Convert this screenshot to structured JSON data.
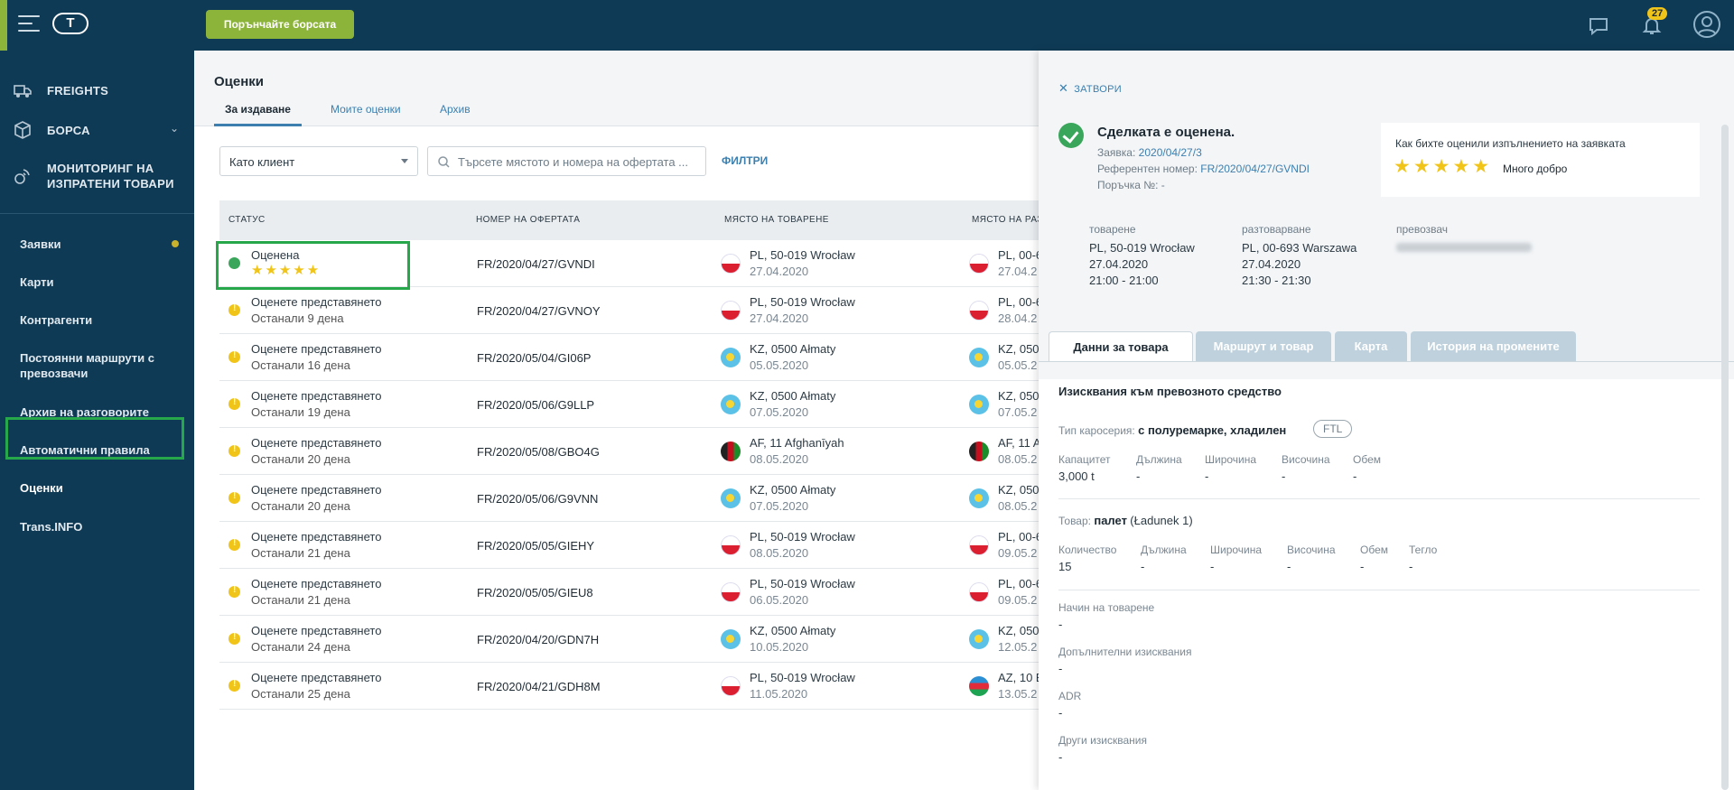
{
  "topbar": {
    "try_button": "Порънчайте борсата",
    "logo": "T",
    "notification_count": "27"
  },
  "sidebar": {
    "main_items": [
      {
        "label": "FREIGHTS"
      },
      {
        "label": "БОРСА"
      },
      {
        "label": "МОНИТОРИНГ НА ИЗПРАТЕНИ ТОВАРИ"
      }
    ],
    "items": [
      {
        "label": "Заявки"
      },
      {
        "label": "Карти"
      },
      {
        "label": "Контрагенти"
      },
      {
        "label": "Постоянни маршрути с превозвачи"
      },
      {
        "label": "Архив на разговорите"
      },
      {
        "label": "Автоматични правила"
      },
      {
        "label": "Оценки"
      },
      {
        "label": "Trans.INFO"
      }
    ]
  },
  "main": {
    "title": "Оценки",
    "tabs": [
      "За издаване",
      "Моите оценки",
      "Архив"
    ],
    "select_value": "Като клиент",
    "search_placeholder": "Търсете мястото и номера на офертата ...",
    "filters_label": "ФИЛТРИ",
    "columns": [
      "СТАТУС",
      "НОМЕР НА ОФЕРТАТА",
      "МЯСТО НА ТОВАРЕНЕ",
      "МЯСТО НА РАЗ"
    ],
    "rows": [
      {
        "status": "Оценена",
        "stars": "★★★★★",
        "number": "FR/2020/04/27/GVNDI",
        "load_flag": "pl",
        "load": "PL, 50-019 Wrocław",
        "load_date": "27.04.2020",
        "unload_flag": "pl",
        "unload": "PL, 00-6",
        "unload_date": "27.04.2"
      },
      {
        "status": "Оценете представянето",
        "sub": "Останали 9 дена",
        "number": "FR/2020/04/27/GVNOY",
        "load_flag": "pl",
        "load": "PL, 50-019 Wrocław",
        "load_date": "27.04.2020",
        "unload_flag": "pl",
        "unload": "PL, 00-6",
        "unload_date": "28.04.2"
      },
      {
        "status": "Оценете представянето",
        "sub": "Останали 16 дена",
        "number": "FR/2020/05/04/GI06P",
        "load_flag": "kz",
        "load": "KZ, 0500 Ałmaty",
        "load_date": "05.05.2020",
        "unload_flag": "kz",
        "unload": "KZ, 050",
        "unload_date": "05.05.2"
      },
      {
        "status": "Оценете представянето",
        "sub": "Останали 19 дена",
        "number": "FR/2020/05/06/G9LLP",
        "load_flag": "kz",
        "load": "KZ, 0500 Ałmaty",
        "load_date": "07.05.2020",
        "unload_flag": "kz",
        "unload": "KZ, 050",
        "unload_date": "07.05.2"
      },
      {
        "status": "Оценете представянето",
        "sub": "Останали 20 дена",
        "number": "FR/2020/05/08/GBO4G",
        "load_flag": "af",
        "load": "AF, 11 Afghanīyah",
        "load_date": "08.05.2020",
        "unload_flag": "af",
        "unload": "AF, 11 A",
        "unload_date": "08.05.2"
      },
      {
        "status": "Оценете представянето",
        "sub": "Останали 20 дена",
        "number": "FR/2020/05/06/G9VNN",
        "load_flag": "kz",
        "load": "KZ, 0500 Ałmaty",
        "load_date": "07.05.2020",
        "unload_flag": "kz",
        "unload": "KZ, 050",
        "unload_date": "08.05.2"
      },
      {
        "status": "Оценете представянето",
        "sub": "Останали 21 дена",
        "number": "FR/2020/05/05/GIEHY",
        "load_flag": "pl",
        "load": "PL, 50-019 Wrocław",
        "load_date": "08.05.2020",
        "unload_flag": "pl",
        "unload": "PL, 00-6",
        "unload_date": "09.05.2"
      },
      {
        "status": "Оценете представянето",
        "sub": "Останали 21 дена",
        "number": "FR/2020/05/05/GIEU8",
        "load_flag": "pl",
        "load": "PL, 50-019 Wrocław",
        "load_date": "06.05.2020",
        "unload_flag": "pl",
        "unload": "PL, 00-6",
        "unload_date": "09.05.2"
      },
      {
        "status": "Оценете представянето",
        "sub": "Останали 24 дена",
        "number": "FR/2020/04/20/GDN7H",
        "load_flag": "kz",
        "load": "KZ, 0500 Ałmaty",
        "load_date": "10.05.2020",
        "unload_flag": "kz",
        "unload": "KZ, 050",
        "unload_date": "12.05.2"
      },
      {
        "status": "Оценете представянето",
        "sub": "Останали 25 дена",
        "number": "FR/2020/04/21/GDH8M",
        "load_flag": "pl",
        "load": "PL, 50-019 Wrocław",
        "load_date": "11.05.2020",
        "unload_flag": "az",
        "unload": "AZ, 10 E",
        "unload_date": "13.05.2"
      }
    ]
  },
  "panel": {
    "close_label": "ЗАТВОРИ",
    "title": "Сделката е оценена.",
    "request_label": "Заявка:",
    "request_value": "2020/04/27/3",
    "ref_label": "Референтен номер:",
    "ref_value": "FR/2020/04/27/GVNDI",
    "order_label": "Поръчка №:",
    "order_value": "-",
    "rating_question": "Как бихте оценили изпълнението на заявката",
    "rating_stars": "★★★★★",
    "rating_label": "Много добро",
    "loading_h": "товарене",
    "loading_place": "PL, 50-019 Wrocław",
    "loading_date": "27.04.2020",
    "loading_time": "21:00 - 21:00",
    "unloading_h": "разтоварване",
    "unloading_place": "PL, 00-693 Warszawa",
    "unloading_date": "27.04.2020",
    "unloading_time": "21:30 - 21:30",
    "carrier_h": "превозвач",
    "tabs": [
      "Данни за товара",
      "Маршрут и товар",
      "Карта",
      "История на промените"
    ],
    "vehicle_title": "Изисквания към превозното средство",
    "body_type_label": "Тип каросерия:",
    "body_type_value": "с полуремарке, хладилен",
    "ftl": "FTL",
    "vehicle_fields": [
      {
        "label": "Капацитет",
        "value": "3,000 t"
      },
      {
        "label": "Дължина",
        "value": "-"
      },
      {
        "label": "Широчина",
        "value": "-"
      },
      {
        "label": "Височина",
        "value": "-"
      },
      {
        "label": "Обем",
        "value": "-"
      }
    ],
    "goods_label": "Товар:",
    "goods_value": "палет",
    "goods_extra": "(Ładunek 1)",
    "goods_fields": [
      {
        "label": "Количество",
        "value": "15"
      },
      {
        "label": "Дължина",
        "value": "-"
      },
      {
        "label": "Широчина",
        "value": "-"
      },
      {
        "label": "Височина",
        "value": "-"
      },
      {
        "label": "Обем",
        "value": "-"
      },
      {
        "label": "Тегло",
        "value": "-"
      }
    ],
    "extra_fields": [
      {
        "label": "Начин на товарене",
        "value": "-"
      },
      {
        "label": "Допълнителни изисквания",
        "value": "-"
      },
      {
        "label": "ADR",
        "value": "-"
      },
      {
        "label": "Други изисквания",
        "value": "-"
      }
    ]
  }
}
